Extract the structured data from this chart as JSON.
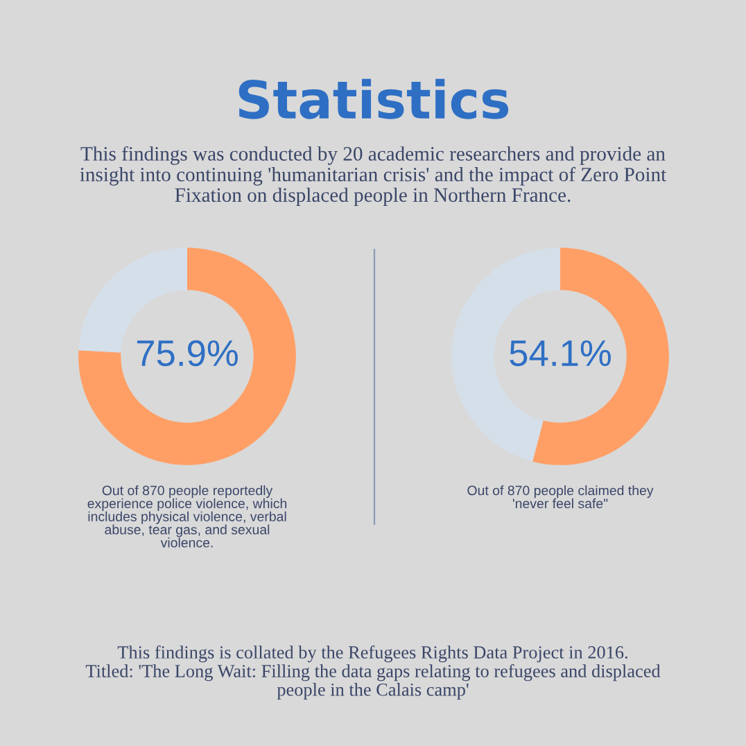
{
  "chart_data": [
    {
      "type": "donut",
      "title": "Statistics",
      "subtitle": "This findings was conducted by 20 academic researchers and provide an\ninsight into continuing 'humanitarian crisis' and the impact of Zero Point\nFixation on displaced people in Northern France.",
      "categories": [
        null,
        null
      ],
      "values": [
        75.9,
        24.1
      ],
      "colors": [
        "#ff9f66",
        "#d5dfea"
      ],
      "value_labels": [
        "75.9%",
        null
      ],
      "annotations": [
        "Out of 870 people reportedly\nexperience police violence, which\nincludes physical violence, verbal\nabuse, tear gas, and sexual\nviolence.",
        "This findings is collated by the Refugees Rights Data Project in 2016.\nTitled: 'The Long Wait: Filling the data gaps relating to refugees and displaced\npeople in the Calais camp'"
      ]
    },
    {
      "type": "donut",
      "categories": [
        null,
        null
      ],
      "values": [
        54.1,
        45.9
      ],
      "colors": [
        "#ff9f66",
        "#d5dfea"
      ],
      "value_labels": [
        "54.1%",
        null
      ],
      "annotations": [
        "Out of 870 people claimed they\n'never feel safe\""
      ]
    }
  ]
}
